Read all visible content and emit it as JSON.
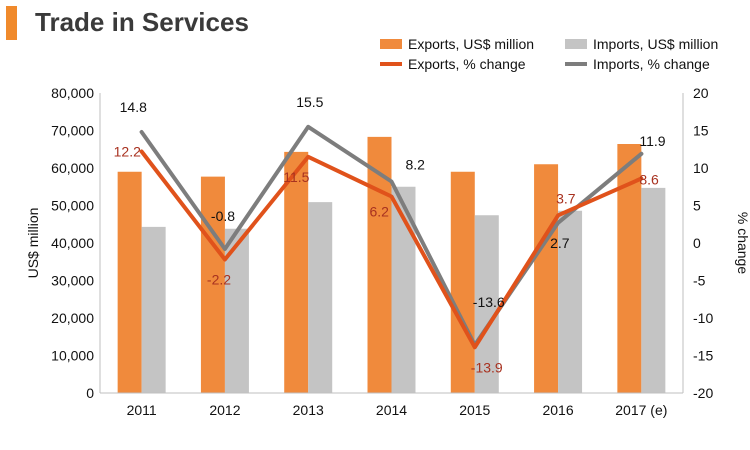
{
  "page_title": "Trade in Services",
  "colors": {
    "accent": "#f08a2c",
    "exports_bar": "#f08a3c",
    "imports_bar": "#c4c4c4",
    "exports_line": "#e0521b",
    "imports_line": "#7d7d7d",
    "exports_label": "#a83220",
    "imports_label": "#111111"
  },
  "chart_data": {
    "type": "bar",
    "title": "Trade in Services",
    "categories": [
      "2011",
      "2012",
      "2013",
      "2014",
      "2015",
      "2016",
      "2017 (e)"
    ],
    "ylabel": "US$ million",
    "y2label": "% change",
    "ylim": [
      0,
      80000
    ],
    "y2lim": [
      -20,
      20
    ],
    "yticks": [
      "0",
      "10,000",
      "20,000",
      "30,000",
      "40,000",
      "50,000",
      "60,000",
      "70,000",
      "80,000"
    ],
    "y2ticks": [
      "-20",
      "-15",
      "-10",
      "-5",
      "0",
      "5",
      "10",
      "15",
      "20"
    ],
    "grid": false,
    "legend": "top-right",
    "series": [
      {
        "name": "Exports, US$ million",
        "kind": "bar",
        "axis": "left",
        "values": [
          59000,
          57700,
          64300,
          68300,
          59000,
          61000,
          66400
        ]
      },
      {
        "name": "Imports, US$ million",
        "kind": "bar",
        "axis": "left",
        "values": [
          44300,
          43800,
          50900,
          55000,
          47400,
          48600,
          54700
        ]
      },
      {
        "name": "Exports, % change",
        "kind": "line",
        "axis": "right",
        "values": [
          12.2,
          -2.2,
          11.5,
          6.2,
          -13.9,
          3.7,
          8.6
        ],
        "labels": [
          "12.2",
          "-2.2",
          "11.5",
          "6.2",
          "-13.9",
          "3.7",
          "8.6"
        ]
      },
      {
        "name": "Imports, % change",
        "kind": "line",
        "axis": "right",
        "values": [
          14.8,
          -0.8,
          15.5,
          8.2,
          -13.6,
          2.7,
          11.9
        ],
        "labels": [
          "14.8",
          "-0.8",
          "15.5",
          "8.2",
          "-13.6",
          "2.7",
          "11.9"
        ]
      }
    ]
  }
}
